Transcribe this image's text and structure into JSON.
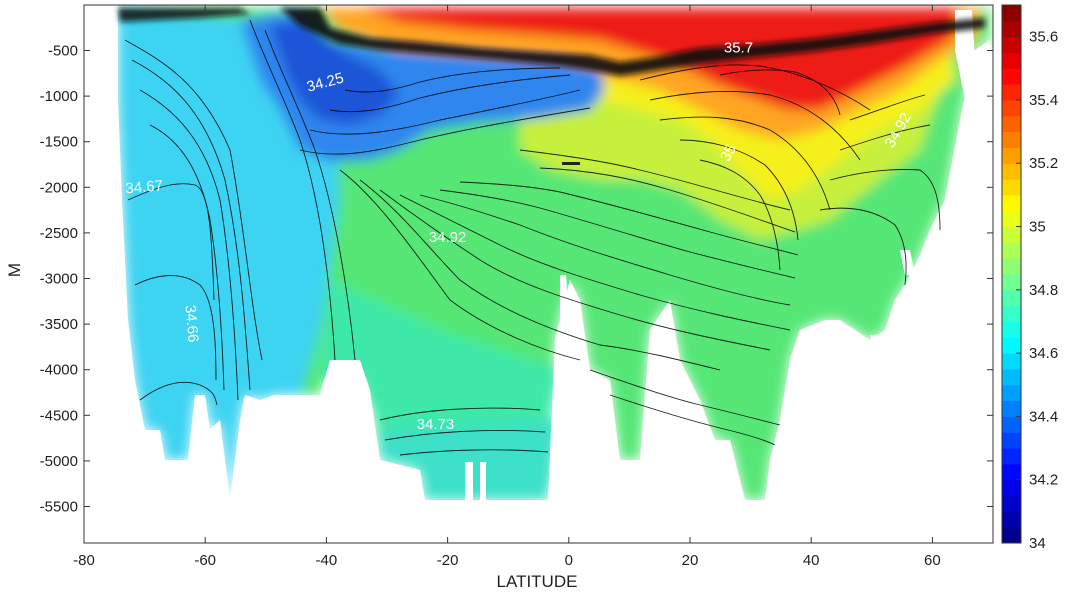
{
  "chart_data": {
    "type": "heatmap",
    "title": "",
    "xlabel": "LATITUDE",
    "ylabel": "M",
    "xlim": [
      -80,
      70
    ],
    "ylim": [
      -5900,
      -1
    ],
    "x_ticks": [
      -80,
      -60,
      -40,
      -20,
      0,
      20,
      40,
      60
    ],
    "x_tick_labels": [
      "-80",
      "-60",
      "-40",
      "-20",
      "0",
      "20",
      "40",
      "60"
    ],
    "y_ticks": [
      -500,
      -1000,
      -1500,
      -2000,
      -2500,
      -3000,
      -3500,
      -4000,
      -4500,
      -5000,
      -5500
    ],
    "y_tick_labels": [
      "-500",
      "-1000",
      "-1500",
      "-2000",
      "-2500",
      "-3000",
      "-3500",
      "-4000",
      "-4500",
      "-5000",
      "-5500"
    ],
    "colorbar": {
      "min": 34.0,
      "max": 35.7,
      "ticks": [
        34,
        34.2,
        34.4,
        34.6,
        34.8,
        35,
        35.2,
        35.4,
        35.6
      ],
      "tick_labels": [
        "34",
        "34.2",
        "34.4",
        "34.6",
        "34.8",
        "35",
        "35.2",
        "35.4",
        "35.6"
      ],
      "colormap": "jet (discrete bands)"
    },
    "contour_labels": [
      {
        "text": "34.25",
        "lat": -40,
        "depth": -900,
        "rotation": -15
      },
      {
        "text": "35.7",
        "lat": 28,
        "depth": -520,
        "rotation": 0
      },
      {
        "text": "34.67",
        "lat": -70,
        "depth": -2050,
        "rotation": -5
      },
      {
        "text": "34.92",
        "lat": -20,
        "depth": -2600,
        "rotation": 0
      },
      {
        "text": "34.66",
        "lat": -63,
        "depth": -3500,
        "rotation": 85
      },
      {
        "text": "34.73",
        "lat": -22,
        "depth": -4650,
        "rotation": 0
      },
      {
        "text": "35",
        "lat": 27,
        "depth": -1650,
        "rotation": -60
      },
      {
        "text": "34.92",
        "lat": 55,
        "depth": -1400,
        "rotation": -60
      }
    ],
    "grid": false,
    "legend": "colorbar-right"
  }
}
